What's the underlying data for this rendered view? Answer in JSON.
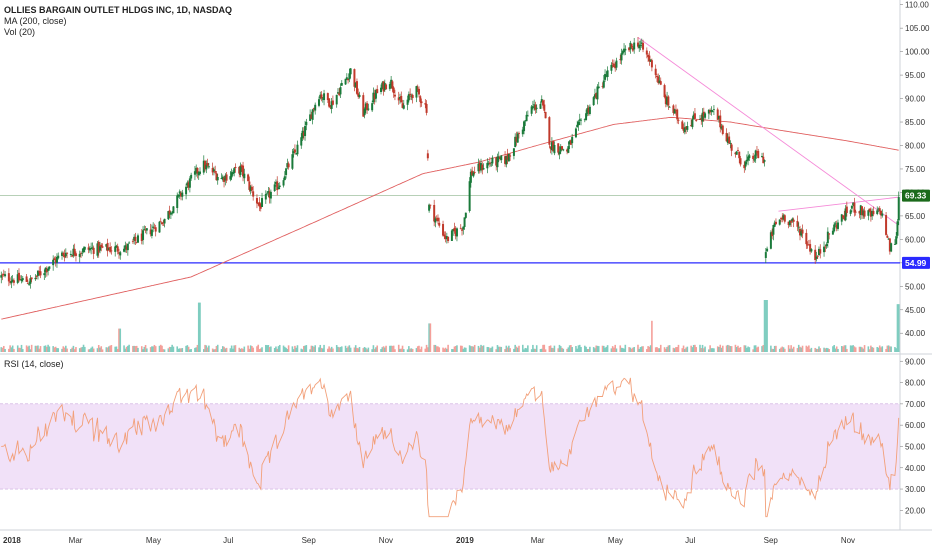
{
  "legend": {
    "title": "OLLIES BARGAIN OUTLET HLDGS INC, 1D, NASDAQ",
    "ma": "MA (200, close)",
    "vol": "Vol (20)",
    "rsi": "RSI (14, close)"
  },
  "chart_data": {
    "type": "candlestick",
    "price_axis": {
      "ticks": [
        40,
        45,
        50,
        55,
        60,
        65,
        70,
        75,
        80,
        85,
        90,
        95,
        100,
        105,
        110
      ],
      "range": [
        36,
        111
      ]
    },
    "rsi_axis": {
      "ticks": [
        20,
        30,
        40,
        50,
        60,
        70,
        80,
        90
      ],
      "range": [
        15,
        92
      ],
      "band": [
        30,
        70
      ]
    },
    "x_axis": {
      "labels": [
        "2018",
        "Mar",
        "May",
        "Jul",
        "Sep",
        "Nov",
        "2019",
        "Mar",
        "May",
        "Jul",
        "Sep",
        "Nov"
      ],
      "start_date": "2018-01-01",
      "end_date": "2019-12-13"
    },
    "close_anchors": [
      [
        "2018-01-02",
        52
      ],
      [
        "2018-01-25",
        51
      ],
      [
        "2018-02-20",
        57
      ],
      [
        "2018-03-15",
        58
      ],
      [
        "2018-04-10",
        58
      ],
      [
        "2018-05-10",
        64
      ],
      [
        "2018-05-25",
        70
      ],
      [
        "2018-06-10",
        76
      ],
      [
        "2018-06-25",
        73
      ],
      [
        "2018-07-10",
        75
      ],
      [
        "2018-07-25",
        67
      ],
      [
        "2018-08-10",
        72
      ],
      [
        "2018-08-25",
        80
      ],
      [
        "2018-09-10",
        91
      ],
      [
        "2018-09-20",
        89
      ],
      [
        "2018-10-05",
        96
      ],
      [
        "2018-10-15",
        87
      ],
      [
        "2018-10-25",
        91
      ],
      [
        "2018-11-05",
        94
      ],
      [
        "2018-11-15",
        88
      ],
      [
        "2018-11-25",
        92
      ],
      [
        "2018-12-04",
        88
      ],
      [
        "2018-12-06",
        67
      ],
      [
        "2018-12-20",
        60
      ],
      [
        "2019-01-02",
        63
      ],
      [
        "2019-01-08",
        74
      ],
      [
        "2019-01-20",
        76
      ],
      [
        "2019-02-05",
        77
      ],
      [
        "2019-02-25",
        88
      ],
      [
        "2019-03-05",
        89
      ],
      [
        "2019-03-12",
        80
      ],
      [
        "2019-03-25",
        79
      ],
      [
        "2019-04-05",
        85
      ],
      [
        "2019-04-25",
        95
      ],
      [
        "2019-05-10",
        100
      ],
      [
        "2019-05-20",
        102
      ],
      [
        "2019-06-01",
        97
      ],
      [
        "2019-06-10",
        90
      ],
      [
        "2019-06-25",
        84
      ],
      [
        "2019-07-05",
        86
      ],
      [
        "2019-07-20",
        87
      ],
      [
        "2019-08-01",
        80
      ],
      [
        "2019-08-12",
        76
      ],
      [
        "2019-08-22",
        78
      ],
      [
        "2019-08-28",
        77
      ]
    ],
    "close_anchors_2": [
      [
        "2019-08-29",
        57
      ],
      [
        "2019-09-05",
        63
      ],
      [
        "2019-09-12",
        65
      ],
      [
        "2019-09-25",
        62
      ],
      [
        "2019-10-08",
        56
      ],
      [
        "2019-10-20",
        62
      ],
      [
        "2019-11-05",
        67
      ],
      [
        "2019-11-20",
        65
      ],
      [
        "2019-11-28",
        66
      ],
      [
        "2019-12-05",
        58
      ],
      [
        "2019-12-10",
        60
      ],
      [
        "2019-12-12",
        69.33
      ]
    ],
    "ma200_anchors": [
      [
        "2018-01-02",
        43
      ],
      [
        "2018-06-01",
        52
      ],
      [
        "2018-09-01",
        63
      ],
      [
        "2018-12-01",
        74
      ],
      [
        "2019-01-15",
        76.5
      ],
      [
        "2019-03-01",
        80
      ],
      [
        "2019-05-01",
        84.5
      ],
      [
        "2019-06-15",
        86
      ],
      [
        "2019-08-01",
        85
      ],
      [
        "2019-09-15",
        83
      ],
      [
        "2019-11-01",
        81
      ],
      [
        "2019-12-12",
        79
      ]
    ],
    "volume_spikes": [
      [
        "2018-04-06",
        0.45
      ],
      [
        "2018-06-08",
        0.95
      ],
      [
        "2018-12-07",
        0.55
      ],
      [
        "2019-06-01",
        0.6
      ],
      [
        "2019-08-29",
        1.0
      ],
      [
        "2019-12-12",
        0.92
      ]
    ],
    "trendlines": [
      {
        "from": [
          "2019-05-20",
          103
        ],
        "to": [
          "2019-12-12",
          63
        ]
      },
      {
        "from": [
          "2019-09-08",
          66
        ],
        "to": [
          "2019-12-12",
          69
        ]
      }
    ],
    "h_lines": [
      {
        "value": 54.99,
        "label": "54.99",
        "color": "#2a2aff"
      },
      {
        "value": 69.33,
        "label": "69.33",
        "color": "#1b6a1b",
        "dashed": true
      }
    ],
    "colors": {
      "up": "#1a7a3a",
      "down": "#c0392b",
      "ma": "#e06060",
      "rsi": "#f2a07a",
      "rsi_band": "#f1e1f8",
      "vol_up": "#7fcdc0",
      "vol_down": "#f4a09a",
      "trend": "#f58ad8"
    }
  }
}
